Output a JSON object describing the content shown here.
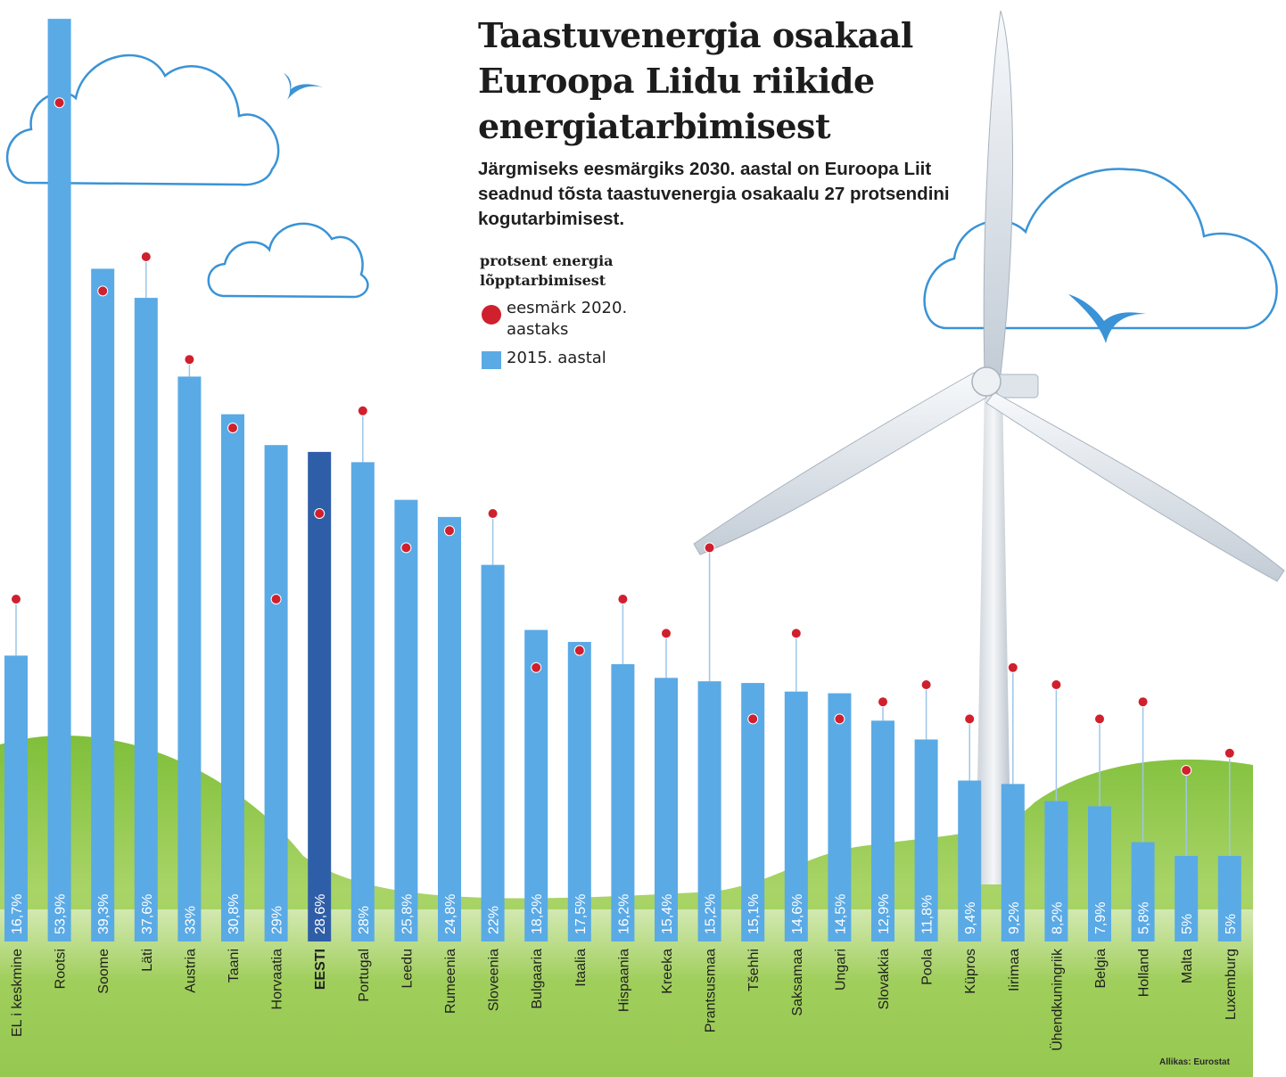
{
  "title": "Taastuvenergia osakaal Euroopa Liidu riikide energiatarbimisest",
  "subtitle": "Järgmiseks eesmärgiks 2030. aastal on Euroopa Liit seadnud tõsta taastuvenergia osakaalu 27 protsendini kogutarbimisest.",
  "legend": {
    "header": "protsent energia lõpptarbimisest",
    "target_label": "eesmärk 2020. aastaks",
    "bar_label": "2015. aastal"
  },
  "source": "Allikas: Eurostat",
  "colors": {
    "bar": "#5aaae6",
    "bar_highlight": "#2f5ea8",
    "target_dot": "#d0202e",
    "stem": "#9ec6e8",
    "cloud": "#3a93d6",
    "grass": "#8cc63f",
    "grass_light": "#bfe08a",
    "turbine": "#e8ecf0"
  },
  "chart_data": {
    "type": "bar",
    "unit": "%",
    "categories": [
      "EL i keskmine",
      "Rootsi",
      "Soome",
      "Läti",
      "Austria",
      "Taani",
      "Horvaatia",
      "EESTI",
      "Portugal",
      "Leedu",
      "Rumeenia",
      "Sloveenia",
      "Bulgaaria",
      "Itaalia",
      "Hispaania",
      "Kreeka",
      "Prantsusmaa",
      "Tšehhi",
      "Saksamaa",
      "Ungari",
      "Slovakkia",
      "Poola",
      "Küpros",
      "Iirimaa",
      "Ühendkuningriik",
      "Belgia",
      "Holland",
      "Malta",
      "Luxemburg"
    ],
    "value_labels": [
      "16,7%",
      "53,9%",
      "39,3%",
      "37,6%",
      "33%",
      "30,8%",
      "29%",
      "28,6%",
      "28%",
      "25,8%",
      "24,8%",
      "22%",
      "18,2%",
      "17,5%",
      "16,2%",
      "15,4%",
      "15,2%",
      "15,1%",
      "14,6%",
      "14,5%",
      "12,9%",
      "11,8%",
      "9,4%",
      "9,2%",
      "8,2%",
      "7,9%",
      "5,8%",
      "5%",
      "5%"
    ],
    "series": [
      {
        "name": "2015. aastal",
        "values": [
          16.7,
          53.9,
          39.3,
          37.6,
          33,
          30.8,
          29,
          28.6,
          28,
          25.8,
          24.8,
          22,
          18.2,
          17.5,
          16.2,
          15.4,
          15.2,
          15.1,
          14.6,
          14.5,
          12.9,
          11.8,
          9.4,
          9.2,
          8.2,
          7.9,
          5.8,
          5,
          5
        ]
      },
      {
        "name": "eesmärk 2020. aastaks",
        "values": [
          20,
          49,
          38,
          40,
          34,
          30,
          20,
          25,
          31,
          23,
          24,
          25,
          16,
          17,
          20,
          18,
          23,
          13,
          18,
          13,
          14,
          15,
          13,
          16,
          15,
          13,
          14,
          10,
          11
        ]
      }
    ],
    "highlight": "EESTI",
    "ylim": [
      0,
      55
    ]
  }
}
